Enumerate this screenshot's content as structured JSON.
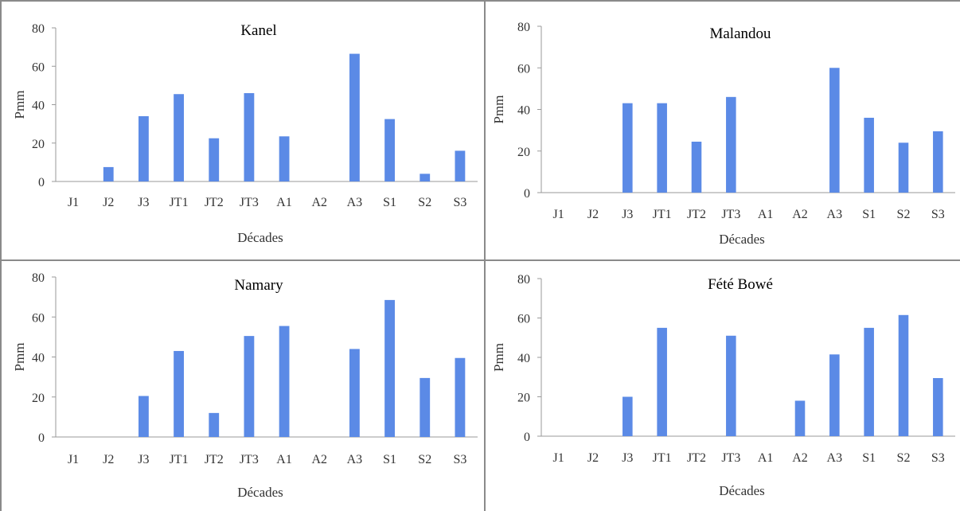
{
  "chart_data": [
    {
      "type": "bar",
      "title": "Kanel",
      "xlabel": "Décades",
      "ylabel": "Pmm",
      "ylim": [
        0,
        80
      ],
      "yticks": [
        0,
        20,
        40,
        60,
        80
      ],
      "categories": [
        "J1",
        "J2",
        "J3",
        "JT1",
        "JT2",
        "JT3",
        "A1",
        "A2",
        "A3",
        "S1",
        "S2",
        "S3"
      ],
      "values": [
        0,
        7.5,
        34,
        45.5,
        22.5,
        46,
        23.5,
        0,
        66.5,
        32.5,
        4,
        16
      ],
      "color": "#5b8ae6",
      "grid": false,
      "legend": "none"
    },
    {
      "type": "bar",
      "title": "Malandou",
      "xlabel": "Décades",
      "ylabel": "Pmm",
      "ylim": [
        0,
        80
      ],
      "yticks": [
        0,
        20,
        40,
        60,
        80
      ],
      "categories": [
        "J1",
        "J2",
        "J3",
        "JT1",
        "JT2",
        "JT3",
        "A1",
        "A2",
        "A3",
        "S1",
        "S2",
        "S3"
      ],
      "values": [
        0,
        0,
        43,
        43,
        24.5,
        46,
        0,
        0,
        60,
        36,
        24,
        29.5
      ],
      "color": "#5b8ae6",
      "grid": false,
      "legend": "none"
    },
    {
      "type": "bar",
      "title": "Namary",
      "xlabel": "Décades",
      "ylabel": "Pmm",
      "ylim": [
        0,
        80
      ],
      "yticks": [
        0,
        20,
        40,
        60,
        80
      ],
      "categories": [
        "J1",
        "J2",
        "J3",
        "JT1",
        "JT2",
        "JT3",
        "A1",
        "A2",
        "A3",
        "S1",
        "S2",
        "S3"
      ],
      "values": [
        0,
        0,
        20.5,
        43,
        12,
        50.5,
        55.5,
        0,
        44,
        68.5,
        29.5,
        39.5
      ],
      "color": "#5b8ae6",
      "grid": false,
      "legend": "none"
    },
    {
      "type": "bar",
      "title": "Fété Bowé",
      "xlabel": "Décades",
      "ylabel": "Pmm",
      "ylim": [
        0,
        80
      ],
      "yticks": [
        0,
        20,
        40,
        60,
        80
      ],
      "categories": [
        "J1",
        "J2",
        "J3",
        "JT1",
        "JT2",
        "JT3",
        "A1",
        "A2",
        "A3",
        "S1",
        "S2",
        "S3"
      ],
      "values": [
        0,
        0,
        20,
        55,
        0,
        51,
        0,
        18,
        41.5,
        55,
        61.5,
        29.5
      ],
      "color": "#5b8ae6",
      "grid": false,
      "legend": "none"
    }
  ]
}
